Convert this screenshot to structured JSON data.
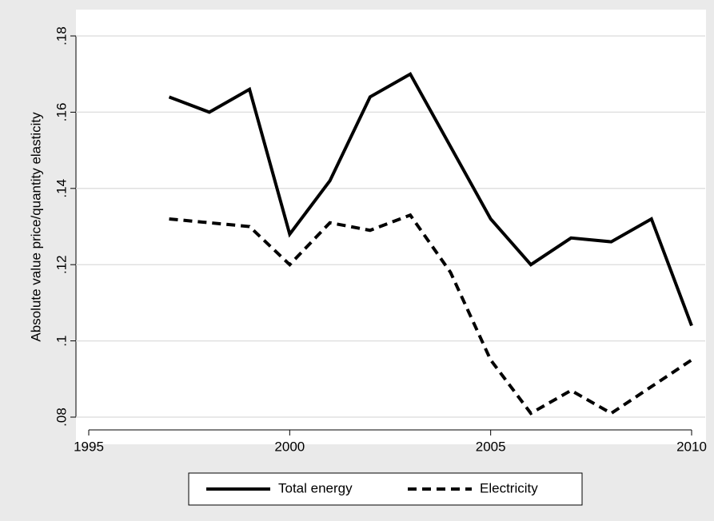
{
  "chart_data": {
    "type": "line",
    "y_label": "Absolute value price/quantity elasticity",
    "x": [
      1997,
      1998,
      1999,
      2000,
      2001,
      2002,
      2003,
      2004,
      2005,
      2006,
      2007,
      2008,
      2009,
      2010
    ],
    "series": [
      {
        "name": "Total energy",
        "color": "#000000",
        "dash": false,
        "values": [
          0.164,
          0.16,
          0.166,
          0.128,
          0.142,
          0.164,
          0.17,
          0.151,
          0.132,
          0.12,
          0.127,
          0.126,
          0.132,
          0.104
        ]
      },
      {
        "name": "Electricity",
        "color": "#000000",
        "dash": true,
        "values": [
          0.132,
          0.131,
          0.13,
          0.12,
          0.131,
          0.129,
          0.133,
          0.118,
          0.095,
          0.081,
          0.087,
          0.081,
          0.088,
          0.095
        ]
      }
    ],
    "xlim": [
      1995,
      2010
    ],
    "xticks": [
      1995,
      2000,
      2005,
      2010
    ],
    "ylim": [
      0.08,
      0.18
    ],
    "yticks": [
      {
        "value": 0.08,
        "label": ".08"
      },
      {
        "value": 0.1,
        "label": ".1"
      },
      {
        "value": 0.12,
        "label": ".12"
      },
      {
        "value": 0.14,
        "label": ".14"
      },
      {
        "value": 0.16,
        "label": ".16"
      },
      {
        "value": 0.18,
        "label": ".18"
      }
    ],
    "grid": true,
    "legend": "bottom"
  }
}
